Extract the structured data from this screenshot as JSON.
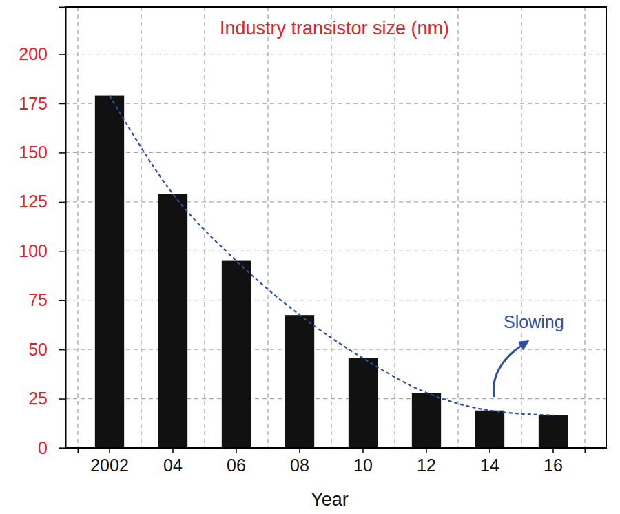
{
  "chart_data": {
    "type": "bar",
    "title": "Industry transistor size (nm)",
    "x_label": "Year",
    "categories": [
      "2002",
      "04",
      "06",
      "08",
      "10",
      "12",
      "14",
      "16"
    ],
    "values": [
      179,
      129,
      95,
      67.5,
      45.5,
      28,
      19,
      16.5
    ],
    "color": "#111111",
    "ylim": [
      0,
      224
    ],
    "yticks": [
      0,
      25,
      50,
      75,
      100,
      125,
      150,
      175,
      200
    ],
    "grid": true,
    "annotation": "Slowing"
  }
}
